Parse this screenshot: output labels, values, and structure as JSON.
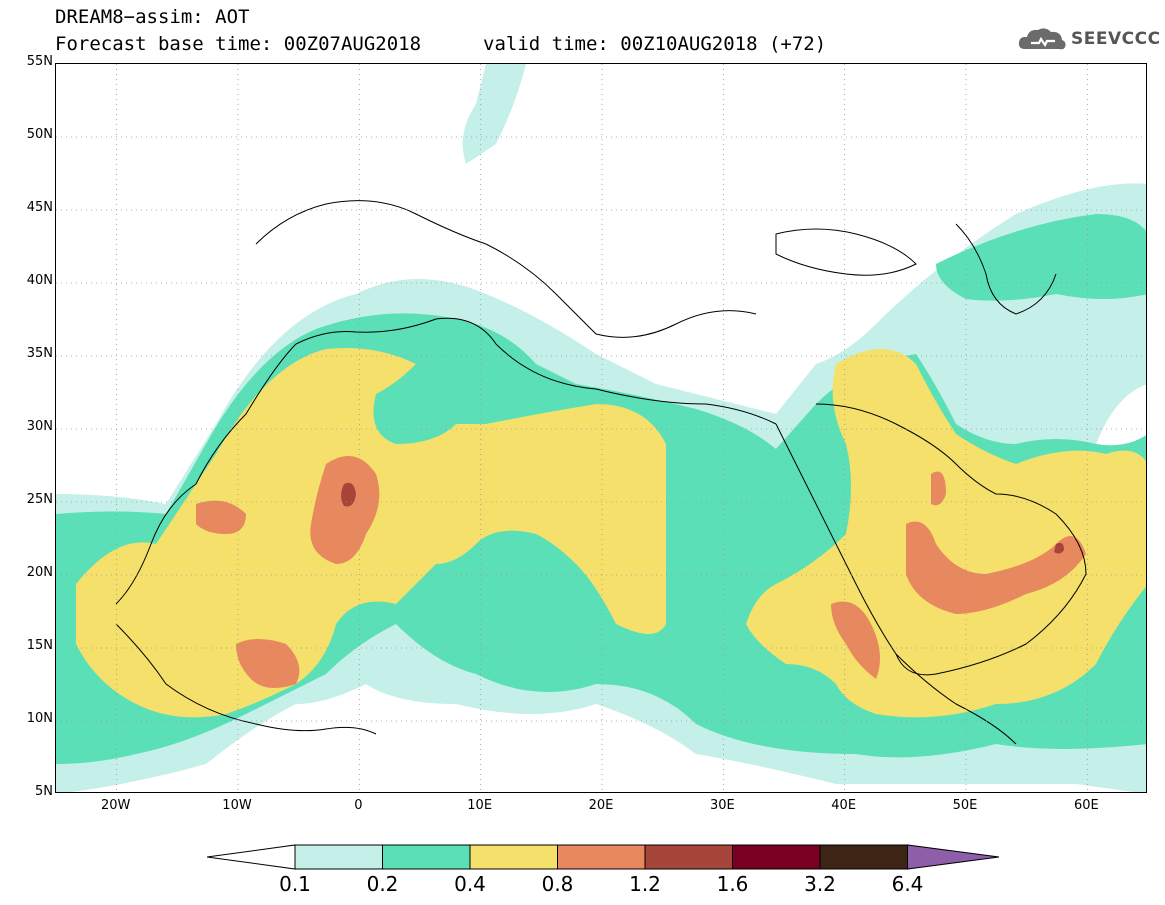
{
  "title": {
    "line1": "DREAM8−assim: AOT",
    "line2": "Forecast base time: 00Z07AUG2018",
    "valid": "valid time: 00Z10AUG2018 (+72)"
  },
  "logo": {
    "text": "SEEVCCC",
    "icon": "cloud-icon"
  },
  "map": {
    "lat_labels": [
      "55N",
      "50N",
      "45N",
      "40N",
      "35N",
      "30N",
      "25N",
      "20N",
      "15N",
      "10N",
      "5N"
    ],
    "lon_labels": [
      "20W",
      "10W",
      "0",
      "10E",
      "20E",
      "30E",
      "40E",
      "50E",
      "60E"
    ],
    "lat_range": [
      5,
      55
    ],
    "lon_range": [
      -25,
      65
    ],
    "grid": "dotted"
  },
  "legend": {
    "levels": [
      "0.1",
      "0.2",
      "0.4",
      "0.8",
      "1.2",
      "1.6",
      "3.2",
      "6.4"
    ],
    "colors": [
      "#ffffff",
      "#c5efe9",
      "#5bdfb7",
      "#f4e06b",
      "#e8885f",
      "#a8453a",
      "#7a0023",
      "#3d2414",
      "#8e5fa8"
    ]
  }
}
